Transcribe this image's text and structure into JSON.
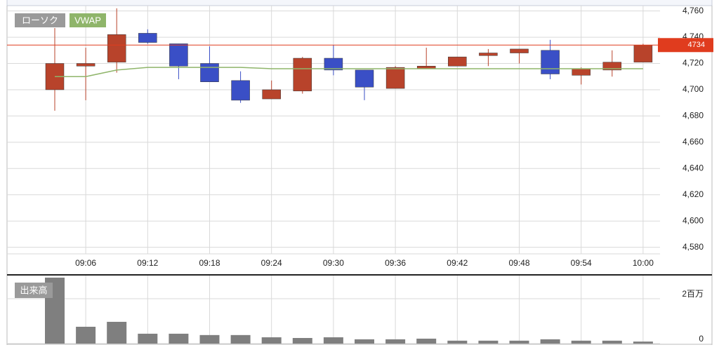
{
  "chart_data": [
    {
      "type": "candlestick",
      "name": "ローソク",
      "categories": [
        null,
        "09:06",
        null,
        "09:12",
        null,
        "09:18",
        null,
        "09:24",
        null,
        "09:30",
        null,
        "09:36",
        null,
        "09:42",
        null,
        "09:48",
        null,
        "09:54",
        null,
        "10:00"
      ],
      "open": [
        4700,
        4718,
        4721,
        4743,
        4735,
        4720,
        4707,
        4693,
        4699,
        4724,
        4715,
        4701,
        4716,
        4718,
        4726,
        4728,
        4730,
        4711,
        4715,
        4721
      ],
      "high": [
        4747,
        4732,
        4762,
        4746,
        4735,
        4733,
        4714,
        4707,
        4725,
        4734,
        4715,
        4718,
        4732,
        4725,
        4731,
        4731,
        4738,
        4717,
        4730,
        4735
      ],
      "low": [
        4684,
        4692,
        4713,
        4735,
        4708,
        4706,
        4690,
        4693,
        4697,
        4711,
        4692,
        4701,
        4716,
        4718,
        4718,
        4720,
        4708,
        4704,
        4710,
        4721
      ],
      "close": [
        4720,
        4720,
        4742,
        4736,
        4718,
        4706,
        4692,
        4700,
        4724,
        4715,
        4702,
        4717,
        4718,
        4725,
        4728,
        4731,
        4712,
        4716,
        4721,
        4734
      ],
      "up_color": "#b8432b",
      "down_color": "#3a4fc6",
      "overlays": [
        {
          "name": "VWAP",
          "color": "#8fb56a",
          "values": [
            4710,
            4710,
            4715,
            4717,
            4717,
            4717,
            4717,
            4716,
            4716,
            4716,
            4716,
            4716,
            4716,
            4716,
            4716,
            4716,
            4716,
            4716,
            4716,
            4716
          ]
        }
      ],
      "last_price": 4734,
      "last_price_color": "#e03c1e",
      "ylim": [
        4575,
        4763
      ],
      "yticks": [
        {
          "value": 4580,
          "label": "4,580"
        },
        {
          "value": 4600,
          "label": "4,600"
        },
        {
          "value": 4620,
          "label": "4,620"
        },
        {
          "value": 4640,
          "label": "4,640"
        },
        {
          "value": 4660,
          "label": "4,660"
        },
        {
          "value": 4680,
          "label": "4,680"
        },
        {
          "value": 4700,
          "label": "4,700"
        },
        {
          "value": 4720,
          "label": "4,720"
        },
        {
          "value": 4740,
          "label": "4,740"
        },
        {
          "value": 4760,
          "label": "4,760"
        }
      ],
      "grid": true
    },
    {
      "type": "bar",
      "name": "出来高",
      "values": [
        2940000,
        750000,
        970000,
        440000,
        440000,
        380000,
        380000,
        280000,
        250000,
        280000,
        190000,
        190000,
        220000,
        130000,
        130000,
        130000,
        190000,
        130000,
        130000,
        90000
      ],
      "color": "#7f7f7f",
      "ylim": [
        0,
        3000000
      ],
      "yticks": [
        0,
        {
          "value": 2000000,
          "label": "2百万"
        }
      ],
      "grid": true
    }
  ]
}
